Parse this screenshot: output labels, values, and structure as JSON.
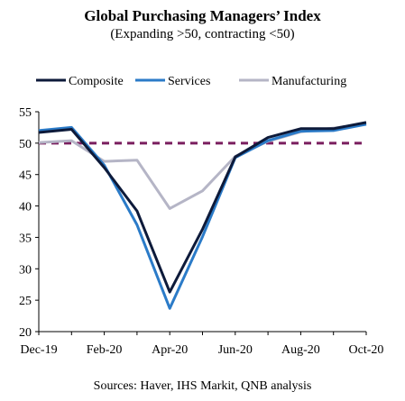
{
  "chart_data": {
    "type": "line",
    "title": "Global Purchasing Managers’ Index",
    "subtitle": "(Expanding >50, contracting <50)",
    "source": "Sources: Haver, IHS Markit, QNB analysis",
    "x": [
      "Dec-19",
      "Jan-20",
      "Feb-20",
      "Mar-20",
      "Apr-20",
      "May-20",
      "Jun-20",
      "Jul-20",
      "Aug-20",
      "Sep-20",
      "Oct-20"
    ],
    "x_tick_labels": [
      "Dec-19",
      "Feb-20",
      "Apr-20",
      "Jun-20",
      "Aug-20",
      "Oct-20"
    ],
    "ylim": [
      20,
      55
    ],
    "y_ticks": [
      20,
      25,
      30,
      35,
      40,
      45,
      50,
      55
    ],
    "reference_line": 50,
    "legend_position": "top",
    "grid": false,
    "series": [
      {
        "name": "Composite",
        "color": "#0d1a3a",
        "values": [
          51.7,
          52.2,
          46.1,
          39.2,
          26.3,
          36.3,
          47.8,
          50.9,
          52.3,
          52.3,
          53.3
        ]
      },
      {
        "name": "Services",
        "color": "#2b7bc8",
        "values": [
          52.0,
          52.5,
          46.5,
          37.0,
          23.7,
          35.1,
          47.7,
          50.4,
          51.9,
          52.0,
          53.0
        ]
      },
      {
        "name": "Manufacturing",
        "color": "#b5b5c6",
        "values": [
          50.1,
          50.4,
          47.1,
          47.3,
          39.6,
          42.4,
          47.9,
          50.3,
          51.8,
          52.4,
          53.0
        ]
      }
    ],
    "reference_color": "#7a1e5f"
  }
}
